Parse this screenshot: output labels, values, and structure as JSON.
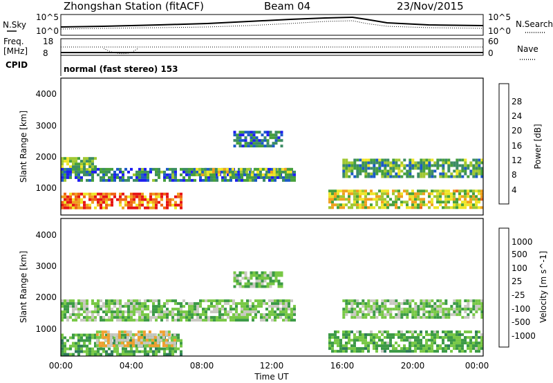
{
  "header": {
    "station": "Zhongshan Station (fitACF)",
    "beam": "Beam 04",
    "date": "23/Nov/2015"
  },
  "top_panels": {
    "nsky_label": "N.Sky",
    "nsearch_label": "N.Search",
    "nsky_ticks": [
      "10^5",
      "10^0"
    ],
    "freq_label_line1": "Freq.",
    "freq_label_line2": "[MHz]",
    "freq_ticks": [
      "18",
      "8"
    ],
    "nave_ticks": [
      "60",
      "0"
    ],
    "nave_label": "Nave",
    "cpid_label": "CPID",
    "cpid_text": "normal (fast stereo) 153"
  },
  "panels": {
    "ylabel": "Slant Range [km]",
    "yticks": [
      "4000",
      "3000",
      "2000",
      "1000"
    ],
    "xticks": [
      "00:00",
      "04:00",
      "08:00",
      "12:00",
      "16:00",
      "20:00",
      "00:00"
    ],
    "xlabel": "Time UT"
  },
  "power_colorbar": {
    "label": "Power [dB]",
    "ticks": [
      "28",
      "24",
      "20",
      "16",
      "12",
      "8",
      "4"
    ],
    "colors": [
      "#1e1ef0",
      "#1c5ac8",
      "#3c8c64",
      "#46a03c",
      "#a0c832",
      "#f0e628",
      "#f0a01e",
      "#f06414",
      "#e61414"
    ]
  },
  "velocity_colorbar": {
    "label": "Velocity [m s^-1]",
    "ticks": [
      "1000",
      "500",
      "100",
      "25",
      "-25",
      "-100",
      "-500",
      "-1000"
    ],
    "colors": [
      "#1e3cc8",
      "#2a5a9a",
      "#2e7a5a",
      "#3c9a46",
      "#78c846",
      "#c8c8c0",
      "#f0a030",
      "#f07818",
      "#e62814"
    ]
  },
  "chart_data": [
    {
      "type": "heatmap",
      "title": "Power",
      "xlabel": "Time UT",
      "ylabel": "Slant Range [km]",
      "xlim": [
        "00:00",
        "00:00"
      ],
      "ylim": [
        180,
        4600
      ],
      "colorbar": {
        "label": "Power [dB]",
        "range": [
          0,
          32
        ]
      },
      "regions": [
        {
          "t_start": 0.0,
          "t_end": 6.8,
          "r_start": 400,
          "r_end": 900,
          "value": 26
        },
        {
          "t_start": 0.0,
          "t_end": 2.0,
          "r_start": 1600,
          "r_end": 2050,
          "value": 14
        },
        {
          "t_start": 0.0,
          "t_end": 13.2,
          "r_start": 1300,
          "r_end": 1700,
          "value": 8
        },
        {
          "t_start": 7.5,
          "t_end": 13.0,
          "r_start": 1450,
          "r_end": 1700,
          "value": 16
        },
        {
          "t_start": 9.8,
          "t_end": 12.5,
          "r_start": 2400,
          "r_end": 2900,
          "value": 7
        },
        {
          "t_start": 15.2,
          "t_end": 23.9,
          "r_start": 400,
          "r_end": 1000,
          "value": 18
        },
        {
          "t_start": 16.0,
          "t_end": 23.9,
          "r_start": 1400,
          "r_end": 2000,
          "value": 12
        }
      ]
    },
    {
      "type": "heatmap",
      "title": "Velocity",
      "xlabel": "Time UT",
      "ylabel": "Slant Range [km]",
      "xlim": [
        "00:00",
        "00:00"
      ],
      "ylim": [
        180,
        4600
      ],
      "colorbar": {
        "label": "Velocity [m s^-1]",
        "range": [
          -1000,
          1000
        ]
      },
      "regions": [
        {
          "t_start": 0.0,
          "t_end": 6.8,
          "r_start": 250,
          "r_end": 900,
          "value": 150
        },
        {
          "t_start": 2.0,
          "t_end": 6.5,
          "r_start": 500,
          "r_end": 1000,
          "value": -300
        },
        {
          "t_start": 0.0,
          "t_end": 13.2,
          "r_start": 1300,
          "r_end": 2000,
          "value": 0
        },
        {
          "t_start": 9.8,
          "t_end": 12.5,
          "r_start": 2400,
          "r_end": 2900,
          "value": 0
        },
        {
          "t_start": 15.2,
          "t_end": 23.9,
          "r_start": 300,
          "r_end": 1000,
          "value": 120
        },
        {
          "t_start": 16.0,
          "t_end": 23.9,
          "r_start": 1400,
          "r_end": 2000,
          "value": 0
        }
      ]
    }
  ]
}
